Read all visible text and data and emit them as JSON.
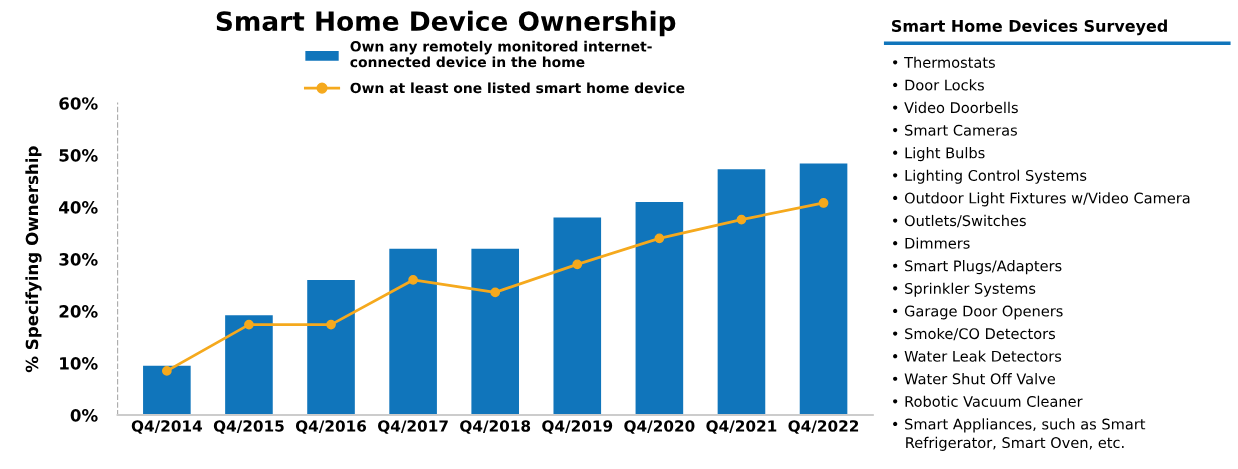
{
  "chart_data": [
    {
      "type": "bar",
      "title": "Smart Home Device Ownership",
      "ylabel": "% Specifying Ownership",
      "categories": [
        "Q4/2014",
        "Q4/2015",
        "Q4/2016",
        "Q4/2017",
        "Q4/2018",
        "Q4/2019",
        "Q4/2020",
        "Q4/2021",
        "Q4/2022"
      ],
      "series": [
        {
          "name": "Own any remotely monitored internet-\nconnected device in the home",
          "color": "#1075bb",
          "values": [
            9.5,
            19.2,
            26,
            32,
            32,
            38,
            41,
            47.3,
            48.4
          ]
        },
        {
          "name": "Own at least one listed smart home device",
          "type": "line",
          "color": "#f5a91d",
          "marker": "circle",
          "values": [
            8.5,
            17.4,
            17.4,
            26,
            23.6,
            29,
            34,
            37.6,
            40.8
          ]
        }
      ],
      "ylim": [
        0,
        60
      ],
      "yticks": [
        {
          "value": 0,
          "label": "0%"
        },
        {
          "value": 10,
          "label": "10%"
        },
        {
          "value": 20,
          "label": "20%"
        },
        {
          "value": 30,
          "label": "30%"
        },
        {
          "value": 40,
          "label": "40%"
        },
        {
          "value": 50,
          "label": "50%"
        },
        {
          "value": 60,
          "label": "60%"
        }
      ],
      "grid": false,
      "legend": "top"
    },
    {
      "type": "other",
      "title": "Smart Home Devices Surveyed",
      "annotations": [
        "• Thermostats",
        "• Door Locks",
        "• Video Doorbells",
        "• Smart Cameras",
        "• Light Bulbs",
        "• Lighting Control Systems",
        "• Outdoor Light Fixtures w/Video Camera",
        "• Outlets/Switches",
        "• Dimmers",
        "• Smart Plugs/Adapters",
        "• Sprinkler Systems",
        "• Garage Door Openers",
        "• Smoke/CO Detectors",
        "• Water Leak Detectors",
        "• Water Shut Off Valve",
        "• Robotic Vacuum Cleaner",
        "• Smart Appliances, such as Smart\n   Refrigerator, Smart Oven, etc."
      ]
    }
  ]
}
